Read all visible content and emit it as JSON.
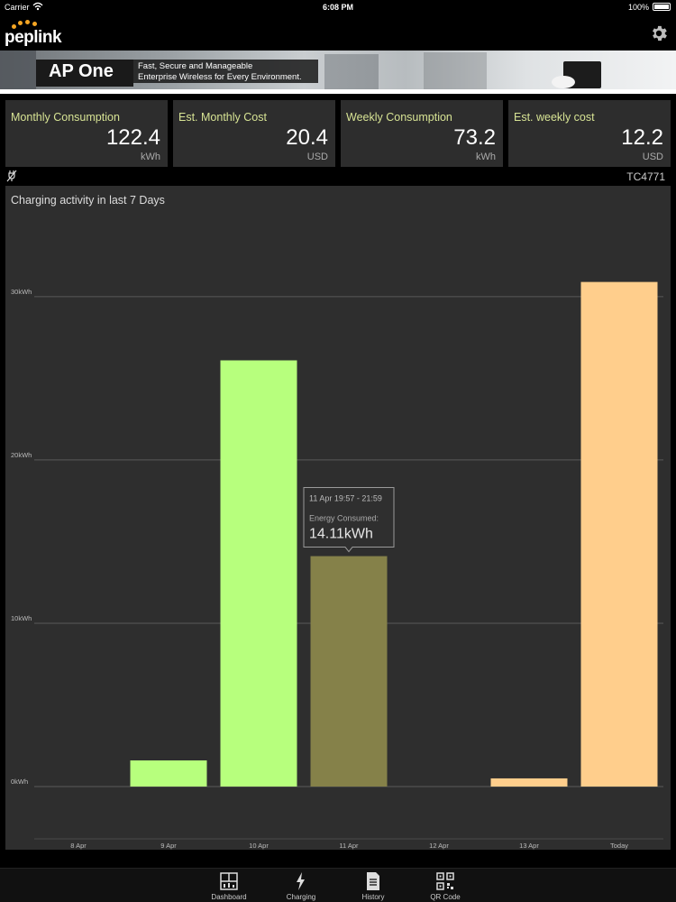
{
  "status_bar": {
    "carrier": "Carrier",
    "time": "6:08 PM",
    "battery": "100%"
  },
  "header": {
    "logo_text": "peplink"
  },
  "banner": {
    "product_name": "AP One",
    "tagline_line1": "Fast, Secure and Manageable",
    "tagline_line2": "Enterprise Wireless for Every Environment."
  },
  "cards": [
    {
      "label": "Monthly Consumption",
      "value": "122.4",
      "unit": "kWh"
    },
    {
      "label": "Est. Monthly Cost",
      "value": "20.4",
      "unit": "USD"
    },
    {
      "label": "Weekly Consumption",
      "value": "73.2",
      "unit": "kWh"
    },
    {
      "label": "Est. weekly cost",
      "value": "12.2",
      "unit": "USD"
    }
  ],
  "station": {
    "id": "TC4771"
  },
  "chart_data": {
    "type": "bar",
    "title": "Charging activity in last 7 Days",
    "categories": [
      "8 Apr",
      "9 Apr",
      "10 Apr",
      "11 Apr",
      "12 Apr",
      "13 Apr",
      "Today"
    ],
    "values": [
      0,
      1.6,
      26.1,
      14.11,
      0,
      0.5,
      30.9
    ],
    "y_ticks": [
      {
        "value": 0,
        "label": "0kWh"
      },
      {
        "value": 10,
        "label": "10kWh"
      },
      {
        "value": 20,
        "label": "20kWh"
      },
      {
        "value": 30,
        "label": "30kWh"
      }
    ],
    "ylim": [
      0,
      34.8
    ],
    "colors": [
      "#b7ff7d",
      "#b7ff7d",
      "#b7ff7d",
      "#858149",
      "#b7ff7d",
      "#ffce8c",
      "#ffce8c"
    ],
    "grid_color": "#5a5a5a",
    "tooltip": {
      "category_index": 3,
      "time_range": "11 Apr 19:57 - 21:59",
      "label": "Energy Consumed:",
      "value": "14.11kWh"
    }
  },
  "tabs": [
    {
      "label": "Dashboard",
      "icon": "dashboard-icon"
    },
    {
      "label": "Charging",
      "icon": "lightning-icon"
    },
    {
      "label": "History",
      "icon": "document-icon"
    },
    {
      "label": "QR Code",
      "icon": "qr-code-icon"
    }
  ]
}
